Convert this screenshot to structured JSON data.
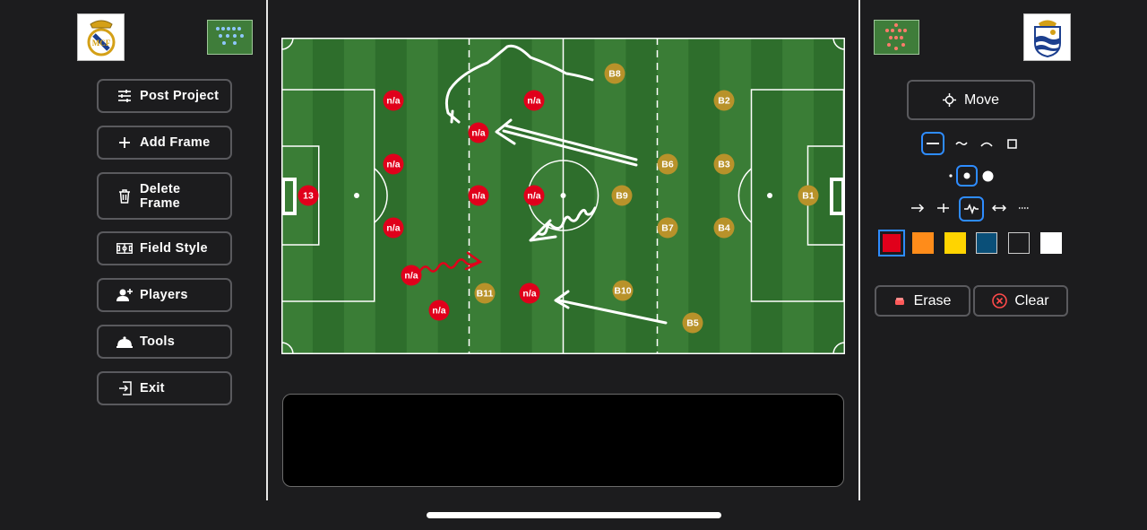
{
  "left_panel": {
    "buttons": [
      {
        "label": "Post Project",
        "icon": "sliders-icon"
      },
      {
        "label": "Add Frame",
        "icon": "plus-icon"
      },
      {
        "label": "Delete\nFrame",
        "icon": "trash-icon"
      },
      {
        "label": "Field Style",
        "icon": "field-icon"
      },
      {
        "label": "Players",
        "icon": "add-person-icon"
      },
      {
        "label": "Tools",
        "icon": "bell-icon"
      },
      {
        "label": "Exit",
        "icon": "exit-icon"
      }
    ]
  },
  "field": {
    "red_players": [
      {
        "label": "13"
      },
      {
        "label": "n/a"
      },
      {
        "label": "n/a"
      },
      {
        "label": "n/a"
      },
      {
        "label": "n/a"
      },
      {
        "label": "n/a"
      },
      {
        "label": "n/a"
      },
      {
        "label": "n/a"
      },
      {
        "label": "n/a"
      },
      {
        "label": "n/a"
      },
      {
        "label": "n/a"
      }
    ],
    "gold_players": [
      {
        "label": "B1"
      },
      {
        "label": "B2"
      },
      {
        "label": "B3"
      },
      {
        "label": "B4"
      },
      {
        "label": "B5"
      },
      {
        "label": "B6"
      },
      {
        "label": "B7"
      },
      {
        "label": "B8"
      },
      {
        "label": "B9"
      },
      {
        "label": "B10"
      },
      {
        "label": "B11"
      }
    ]
  },
  "right_panel": {
    "move_label": "Move",
    "erase_label": "Erase",
    "clear_label": "Clear",
    "line_styles": [
      "straight-line-icon",
      "wavy-line-icon",
      "arc-line-icon",
      "square-icon"
    ],
    "selected_line_style": "straight-line-icon",
    "thickness": [
      "small-dot-icon",
      "medium-dot-icon",
      "large-dot-icon"
    ],
    "selected_thickness": "medium-dot-icon",
    "arrow_types": [
      "arrow-right-icon",
      "t-end-icon",
      "zigzag-icon",
      "double-arrow-icon",
      "dotted-line-icon"
    ],
    "selected_arrow_type": "zigzag-icon",
    "colors": [
      "#e0001b",
      "#ff8c1a",
      "#ffd400",
      "#0a4f78",
      "#1c1c1e",
      "#ffffff"
    ],
    "selected_color": "#e0001b"
  },
  "colors": {
    "home_team": "#e0001b",
    "away_team": "#b8922a",
    "pitch_dark": "#2e6e2c",
    "pitch_light": "#3a7d36",
    "selection": "#2e8cff"
  }
}
